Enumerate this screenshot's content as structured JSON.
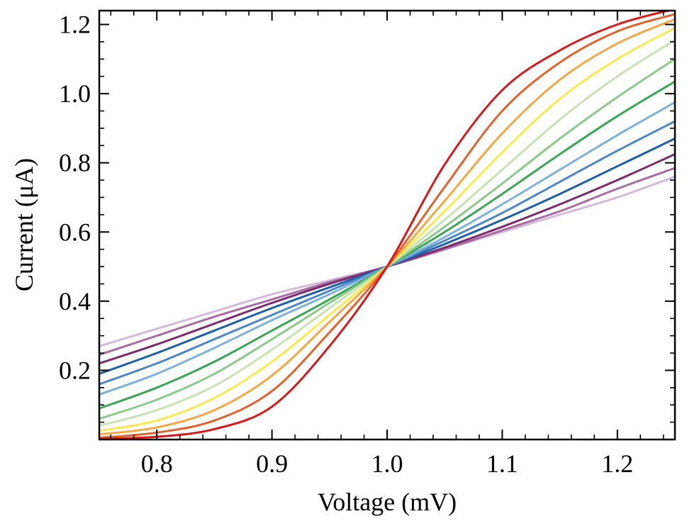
{
  "chart_data": {
    "type": "line",
    "title": "",
    "xlabel": "Voltage (mV)",
    "ylabel": "Current (μA)",
    "xlim": [
      0.75,
      1.25
    ],
    "ylim": [
      0.0,
      1.24
    ],
    "x_ticks": [
      0.8,
      0.9,
      1.0,
      1.1,
      1.2
    ],
    "x_tick_labels": [
      "0.8",
      "0.9",
      "1.0",
      "1.1",
      "1.2"
    ],
    "y_ticks": [
      0.2,
      0.4,
      0.6,
      0.8,
      1.0,
      1.2
    ],
    "y_tick_labels": [
      "0.2",
      "0.4",
      "0.6",
      "0.8",
      "1.0",
      "1.2"
    ],
    "grid": false,
    "legend": "none",
    "model": "logistic curves through (1.0, 0.5), I = 0.5 + 0.95*(1/(1+exp(-(V-1)/s)) - 0.5) style sigmoid family",
    "series": [
      {
        "color": "#d4b9da",
        "x": [
          0.75,
          0.8,
          0.85,
          0.9,
          0.95,
          1.0,
          1.05,
          1.1,
          1.15,
          1.2,
          1.25
        ],
        "values": [
          0.27,
          0.32,
          0.37,
          0.42,
          0.46,
          0.5,
          0.55,
          0.6,
          0.65,
          0.7,
          0.76
        ]
      },
      {
        "color": "#a86ba3",
        "x": [
          0.75,
          0.8,
          0.85,
          0.9,
          0.95,
          1.0,
          1.05,
          1.1,
          1.15,
          1.2,
          1.25
        ],
        "values": [
          0.245,
          0.3,
          0.355,
          0.405,
          0.455,
          0.5,
          0.55,
          0.605,
          0.66,
          0.725,
          0.785
        ]
      },
      {
        "color": "#7b2c6e",
        "x": [
          0.75,
          0.8,
          0.85,
          0.9,
          0.95,
          1.0,
          1.05,
          1.1,
          1.15,
          1.2,
          1.25
        ],
        "values": [
          0.22,
          0.275,
          0.335,
          0.395,
          0.45,
          0.5,
          0.555,
          0.615,
          0.68,
          0.75,
          0.825
        ]
      },
      {
        "color": "#1c5fa8",
        "x": [
          0.75,
          0.8,
          0.85,
          0.9,
          0.95,
          1.0,
          1.05,
          1.1,
          1.15,
          1.2,
          1.25
        ],
        "values": [
          0.19,
          0.25,
          0.315,
          0.38,
          0.44,
          0.5,
          0.565,
          0.635,
          0.71,
          0.79,
          0.87
        ]
      },
      {
        "color": "#4b87c7",
        "x": [
          0.75,
          0.8,
          0.85,
          0.9,
          0.95,
          1.0,
          1.05,
          1.1,
          1.15,
          1.2,
          1.25
        ],
        "values": [
          0.16,
          0.22,
          0.29,
          0.36,
          0.43,
          0.5,
          0.575,
          0.655,
          0.745,
          0.835,
          0.92
        ]
      },
      {
        "color": "#7eb1dc",
        "x": [
          0.75,
          0.8,
          0.85,
          0.9,
          0.95,
          1.0,
          1.05,
          1.1,
          1.15,
          1.2,
          1.25
        ],
        "values": [
          0.13,
          0.19,
          0.265,
          0.345,
          0.42,
          0.5,
          0.585,
          0.68,
          0.78,
          0.88,
          0.975
        ]
      },
      {
        "color": "#3aa655",
        "x": [
          0.75,
          0.8,
          0.85,
          0.9,
          0.95,
          1.0,
          1.05,
          1.1,
          1.15,
          1.2,
          1.25
        ],
        "values": [
          0.09,
          0.15,
          0.225,
          0.315,
          0.405,
          0.5,
          0.6,
          0.71,
          0.825,
          0.935,
          1.035
        ]
      },
      {
        "color": "#8cc98a",
        "x": [
          0.75,
          0.8,
          0.85,
          0.9,
          0.95,
          1.0,
          1.05,
          1.1,
          1.15,
          1.2,
          1.25
        ],
        "values": [
          0.06,
          0.115,
          0.19,
          0.29,
          0.395,
          0.5,
          0.615,
          0.74,
          0.87,
          0.99,
          1.1
        ]
      },
      {
        "color": "#c8e3b2",
        "x": [
          0.75,
          0.8,
          0.85,
          0.9,
          0.95,
          1.0,
          1.05,
          1.1,
          1.15,
          1.2,
          1.25
        ],
        "values": [
          0.04,
          0.085,
          0.155,
          0.26,
          0.38,
          0.5,
          0.635,
          0.78,
          0.925,
          1.05,
          1.155
        ]
      },
      {
        "color": "#f7e94e",
        "x": [
          0.75,
          0.8,
          0.85,
          0.9,
          0.95,
          1.0,
          1.05,
          1.1,
          1.15,
          1.2,
          1.25
        ],
        "values": [
          0.025,
          0.055,
          0.12,
          0.225,
          0.36,
          0.5,
          0.66,
          0.83,
          0.985,
          1.1,
          1.19
        ]
      },
      {
        "color": "#f5a743",
        "x": [
          0.75,
          0.8,
          0.85,
          0.9,
          0.95,
          1.0,
          1.05,
          1.1,
          1.15,
          1.2,
          1.25
        ],
        "values": [
          0.015,
          0.035,
          0.085,
          0.185,
          0.34,
          0.5,
          0.69,
          0.885,
          1.04,
          1.145,
          1.215
        ]
      },
      {
        "color": "#e4612b",
        "x": [
          0.75,
          0.8,
          0.85,
          0.9,
          0.95,
          1.0,
          1.05,
          1.1,
          1.15,
          1.2,
          1.25
        ],
        "values": [
          0.005,
          0.02,
          0.055,
          0.14,
          0.31,
          0.5,
          0.73,
          0.95,
          1.09,
          1.18,
          1.23
        ]
      },
      {
        "color": "#d7191c",
        "x": [
          0.75,
          0.8,
          0.85,
          0.9,
          0.95,
          1.0,
          1.05,
          1.1,
          1.15,
          1.2,
          1.25
        ],
        "values": [
          0.002,
          0.008,
          0.03,
          0.095,
          0.27,
          0.5,
          0.795,
          1.01,
          1.125,
          1.2,
          1.245
        ]
      }
    ]
  }
}
